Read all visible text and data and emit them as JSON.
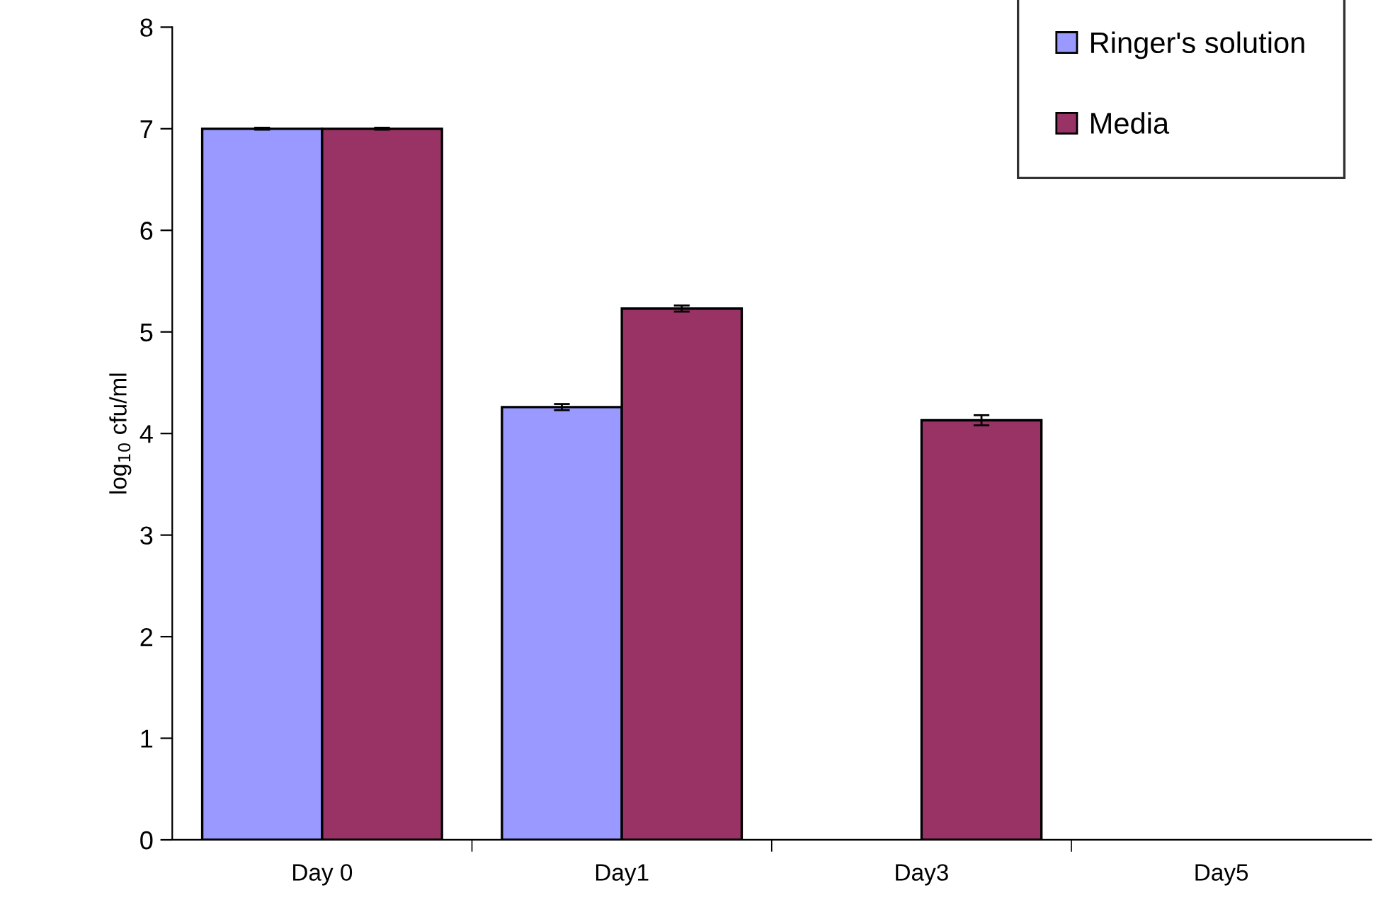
{
  "chart_data": {
    "type": "bar",
    "ylabel": "log$_{10}$ cfu/ml",
    "categories": [
      "Day 0",
      "Day1",
      "Day3",
      "Day5"
    ],
    "series": [
      {
        "name": "Ringer's solution",
        "color": "#9999ff",
        "values": [
          7.0,
          4.26,
          null,
          null
        ],
        "errors": [
          0.01,
          0.03,
          null,
          null
        ]
      },
      {
        "name": "Media",
        "color": "#993366",
        "values": [
          7.0,
          5.23,
          4.13,
          null
        ],
        "errors": [
          0.01,
          0.03,
          0.05,
          null
        ]
      }
    ],
    "ylim": [
      0,
      8
    ],
    "yticks": [
      0,
      1,
      2,
      3,
      4,
      5,
      6,
      7,
      8
    ],
    "grid": false,
    "legend": "top right"
  }
}
